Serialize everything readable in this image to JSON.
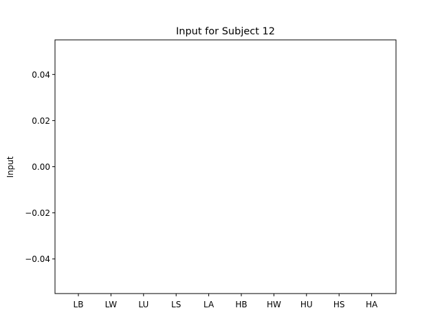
{
  "chart_data": {
    "type": "bar",
    "title": "Input for Subject 12",
    "xlabel": "",
    "ylabel": "Input",
    "categories": [
      "LB",
      "LW",
      "LU",
      "LS",
      "LA",
      "HB",
      "HW",
      "HU",
      "HS",
      "HA"
    ],
    "values": [
      0,
      0,
      0,
      0,
      0,
      0,
      0,
      0,
      0,
      0
    ],
    "ylim": [
      -0.055,
      0.055
    ],
    "yticks": [
      "0.04",
      "0.02",
      "0.00",
      "−0.02",
      "−0.04"
    ],
    "ytick_values": [
      0.04,
      0.02,
      0.0,
      -0.02,
      -0.04
    ],
    "grid": false
  }
}
